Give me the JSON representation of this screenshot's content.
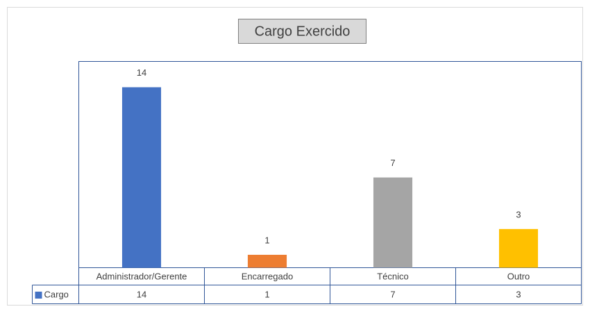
{
  "chart_data": {
    "type": "bar",
    "title": "Cargo Exercido",
    "categories": [
      "Administrador/Gerente",
      "Encarregado",
      "Técnico",
      "Outro"
    ],
    "series": [
      {
        "name": "Cargo",
        "color": "#4472c4",
        "colors": [
          "#4472c4",
          "#ed7d31",
          "#a5a5a5",
          "#ffc000"
        ],
        "values": [
          14,
          1,
          7,
          3
        ]
      }
    ],
    "ylim": [
      0,
      16
    ],
    "data_table": true
  }
}
